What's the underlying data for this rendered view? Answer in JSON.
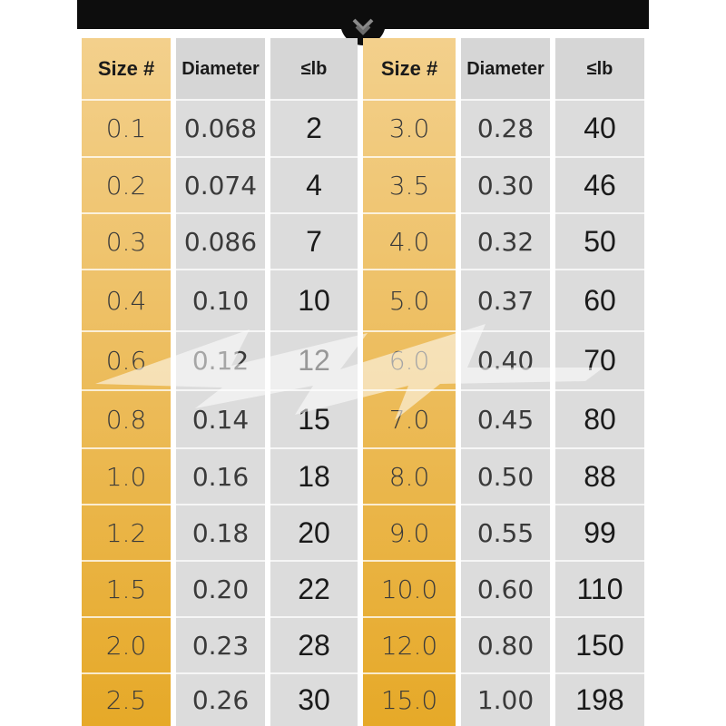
{
  "table": {
    "headers": [
      "Size #",
      "Diameter",
      "≤lb",
      "Size #",
      "Diameter",
      "≤lb"
    ],
    "left": [
      {
        "size": "0.1",
        "diameter": "0.068",
        "lb": "2"
      },
      {
        "size": "0.2",
        "diameter": "0.074",
        "lb": "4"
      },
      {
        "size": "0.3",
        "diameter": "0.086",
        "lb": "7"
      },
      {
        "size": "0.4",
        "diameter": "0.10",
        "lb": "10"
      },
      {
        "size": "0.6",
        "diameter": "0.12",
        "lb": "12"
      },
      {
        "size": "0.8",
        "diameter": "0.14",
        "lb": "15"
      },
      {
        "size": "1.0",
        "diameter": "0.16",
        "lb": "18"
      },
      {
        "size": "1.2",
        "diameter": "0.18",
        "lb": "20"
      },
      {
        "size": "1.5",
        "diameter": "0.20",
        "lb": "22"
      },
      {
        "size": "2.0",
        "diameter": "0.23",
        "lb": "28"
      },
      {
        "size": "2.5",
        "diameter": "0.26",
        "lb": "30"
      }
    ],
    "right": [
      {
        "size": "3.0",
        "diameter": "0.28",
        "lb": "40"
      },
      {
        "size": "3.5",
        "diameter": "0.30",
        "lb": "46"
      },
      {
        "size": "4.0",
        "diameter": "0.32",
        "lb": "50"
      },
      {
        "size": "5.0",
        "diameter": "0.37",
        "lb": "60"
      },
      {
        "size": "6.0",
        "diameter": "0.40",
        "lb": "70"
      },
      {
        "size": "7.0",
        "diameter": "0.45",
        "lb": "80"
      },
      {
        "size": "8.0",
        "diameter": "0.50",
        "lb": "88"
      },
      {
        "size": "9.0",
        "diameter": "0.55",
        "lb": "99"
      },
      {
        "size": "10.0",
        "diameter": "0.60",
        "lb": "110"
      },
      {
        "size": "12.0",
        "diameter": "0.80",
        "lb": "150"
      },
      {
        "size": "15.0",
        "diameter": "1.00",
        "lb": "198"
      }
    ]
  },
  "colors": {
    "gold_top": "#f3d08c",
    "gold_bottom": "#e6a928",
    "gray": "#dcdcdc",
    "bar": "#0d0d0d"
  },
  "icons": {
    "badge": "chevron-down-icon",
    "watermark": "fish-logo-watermark"
  }
}
